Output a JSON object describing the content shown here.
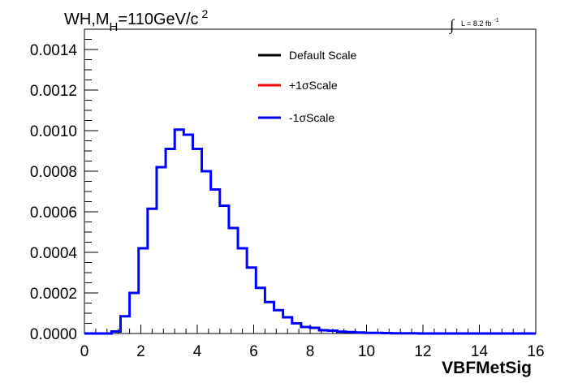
{
  "chart_data": {
    "type": "step-histogram",
    "title": {
      "prefix": "WH,M",
      "subscript": "H",
      "suffix": "=110GeV/c",
      "superscript": "2"
    },
    "luminosity": {
      "integral_symbol": "∫",
      "text": "L = 8.2 fb",
      "superscript": "-1"
    },
    "xlabel": "VBFMetSig",
    "ylabel": "",
    "xlim": [
      0,
      16
    ],
    "ylim": [
      0,
      0.0015
    ],
    "x_ticks": [
      0,
      2,
      4,
      6,
      8,
      10,
      12,
      14,
      16
    ],
    "x_tick_labels": [
      "0",
      "2",
      "4",
      "6",
      "8",
      "10",
      "12",
      "14",
      "16"
    ],
    "y_ticks": [
      0,
      0.0002,
      0.0004,
      0.0006,
      0.0008,
      0.001,
      0.0012,
      0.0014
    ],
    "y_tick_labels": [
      "0.0000",
      "0.0002",
      "0.0004",
      "0.0006",
      "0.0008",
      "0.0010",
      "0.0012",
      "0.0014"
    ],
    "bin_width": 0.32,
    "bin_edges_start": 0,
    "legend": [
      {
        "label": "Default Scale",
        "color": "#000000"
      },
      {
        "label": "+1σScale",
        "color": "#ff0000"
      },
      {
        "label": "-1σScale",
        "color": "#0000ff"
      }
    ],
    "series": [
      {
        "name": "-1σScale",
        "color": "#0000ff",
        "values": [
          0,
          0,
          0,
          1e-05,
          8.5e-05,
          0.0002,
          0.00042,
          0.000615,
          0.00082,
          0.00091,
          0.001005,
          0.00098,
          0.00091,
          0.0008,
          0.00071,
          0.00063,
          0.00052,
          0.00042,
          0.000325,
          0.000225,
          0.000155,
          0.000115,
          8e-05,
          5e-05,
          3.2e-05,
          2.8e-05,
          1.6e-05,
          1.4e-05,
          9e-06,
          7e-06,
          5e-06,
          3e-06,
          3e-06,
          2e-06,
          1e-06,
          1e-06,
          1e-06,
          0,
          0,
          0,
          0,
          0,
          0,
          0,
          0,
          0,
          0,
          0,
          0,
          0
        ]
      }
    ]
  }
}
